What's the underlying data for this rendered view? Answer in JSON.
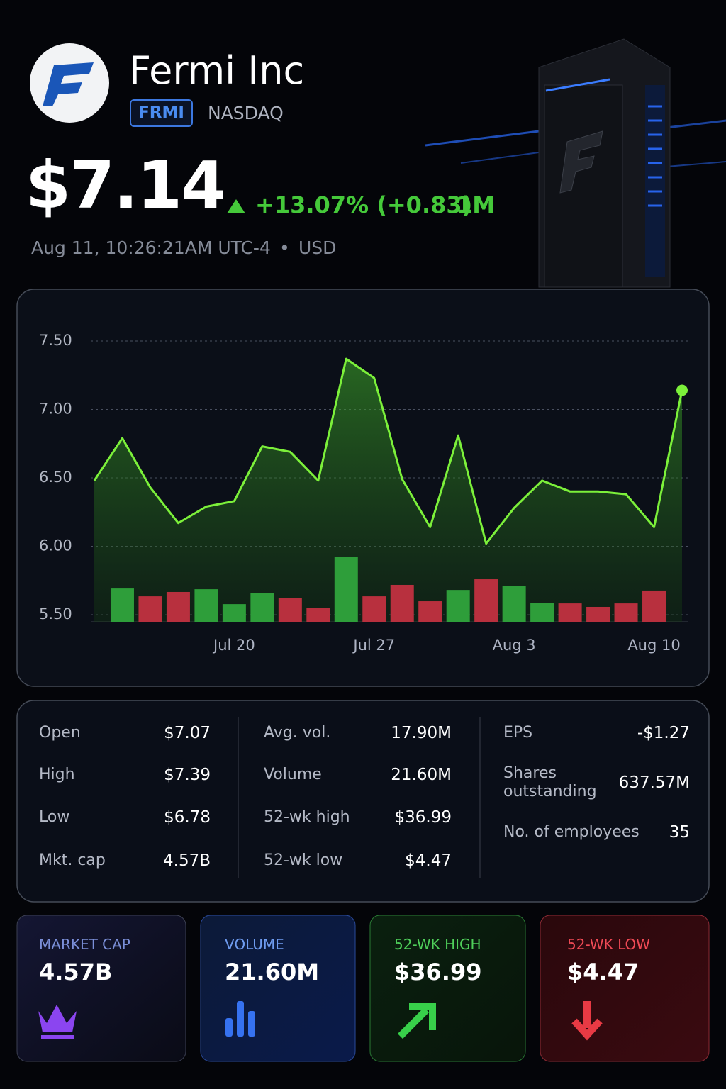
{
  "header": {
    "company": "Fermi Inc",
    "ticker": "FRMI",
    "exchange": "NASDAQ",
    "price": "$7.14",
    "change": "+13.07% (+0.83)",
    "period": "1M",
    "timestamp": "Aug 11, 10:26:21AM UTC-4",
    "currency": "USD"
  },
  "chart_data": {
    "type": "line",
    "categories": [
      null,
      null,
      null,
      null,
      null,
      "Jul 20",
      null,
      null,
      null,
      null,
      "Jul 27",
      null,
      null,
      null,
      null,
      "Aug 3",
      null,
      null,
      null,
      null,
      "Aug 10",
      null
    ],
    "series": [
      {
        "color": "#7cf03a",
        "values": [
          6.48,
          6.79,
          6.43,
          6.17,
          6.29,
          6.33,
          6.73,
          6.69,
          6.48,
          7.37,
          7.23,
          6.49,
          6.14,
          6.81,
          6.02,
          6.28,
          6.48,
          6.4,
          6.4,
          6.38,
          6.14,
          7.14
        ]
      },
      {
        "type": "bar",
        "colors": [
          null,
          "#2e9e3a",
          "#b8303e",
          "#b8303e",
          "#2e9e3a",
          "#2e9e3a",
          "#2e9e3a",
          "#b8303e",
          "#b8303e",
          "#2e9e3a",
          "#b8303e",
          "#b8303e",
          "#b8303e",
          "#2e9e3a",
          "#b8303e",
          "#2e9e3a",
          "#2e9e3a",
          "#b8303e",
          "#b8303e",
          "#b8303e",
          "#b8303e",
          null
        ],
        "values": [
          null,
          23.0,
          17.6,
          20.6,
          22.5,
          12.2,
          20.1,
          16.2,
          9.8,
          45.1,
          17.6,
          25.5,
          14.2,
          22.0,
          29.4,
          25.0,
          13.2,
          12.7,
          10.3,
          12.7,
          21.6,
          null
        ]
      }
    ],
    "ylim": [
      5.5,
      7.5
    ],
    "yticks": [
      {
        "value": 5.5,
        "label": "5.50"
      },
      {
        "value": 6,
        "label": "6.00"
      },
      {
        "value": 6.5,
        "label": "6.50"
      },
      {
        "value": 7,
        "label": "7.00"
      },
      {
        "value": 7.5,
        "label": "7.50"
      }
    ],
    "grid": true
  },
  "stats": {
    "columns": [
      [
        {
          "label": "Open",
          "value": "$7.07"
        },
        {
          "label": "High",
          "value": "$7.39"
        },
        {
          "label": "Low",
          "value": "$6.78"
        },
        {
          "label": "Mkt. cap",
          "value": "4.57B"
        }
      ],
      [
        {
          "label": "Avg. vol.",
          "value": "17.90M"
        },
        {
          "label": "Volume",
          "value": "21.60M"
        },
        {
          "label": "52-wk high",
          "value": "$36.99"
        },
        {
          "label": "52-wk low",
          "value": "$4.47"
        }
      ],
      [
        {
          "label": "EPS",
          "value": "-$1.27"
        },
        {
          "label": "Shares outstanding",
          "value": "637.57M"
        },
        {
          "label": "No. of employees",
          "value": "35"
        }
      ]
    ]
  },
  "cards": [
    {
      "label": "MARKET CAP",
      "value": "4.57B"
    },
    {
      "label": "VOLUME",
      "value": "21.60M"
    },
    {
      "label": "52-WK HIGH",
      "value": "$36.99"
    },
    {
      "label": "52-WK LOW",
      "value": "$4.47"
    }
  ]
}
